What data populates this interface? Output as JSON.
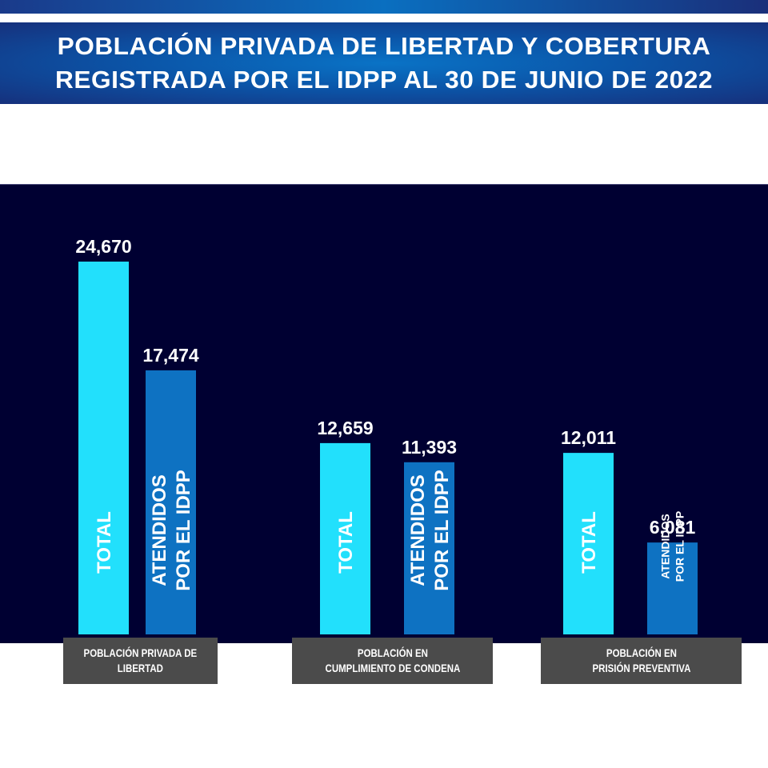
{
  "header": {
    "title_line1": "POBLACIÓN PRIVADA DE LIBERTAD Y COBERTURA",
    "title_line2": "REGISTRADA POR EL IDPP AL 30 DE JUNIO DE 2022"
  },
  "colors": {
    "total": "#22e0fc",
    "atendidos": "#0e72c2",
    "panel": "#000032",
    "category_box": "#4b4b4b",
    "label_text": "#ffffff"
  },
  "chart_data": {
    "type": "bar",
    "title": "POBLACIÓN PRIVADA DE LIBERTAD Y COBERTURA REGISTRADA POR EL IDPP AL 30 DE JUNIO DE 2022",
    "categories": [
      "POBLACIÓN PRIVADA DE LIBERTAD",
      "POBLACIÓN EN CUMPLIMIENTO DE CONDENA",
      "POBLACIÓN EN PRISIÓN PREVENTIVA"
    ],
    "category_lines": [
      [
        "POBLACIÓN PRIVADA DE",
        "LIBERTAD"
      ],
      [
        "POBLACIÓN EN",
        "CUMPLIMIENTO DE CONDENA"
      ],
      [
        "POBLACIÓN EN",
        "PRISIÓN PREVENTIVA"
      ]
    ],
    "series": [
      {
        "name": "TOTAL",
        "bar_label": [
          "TOTAL"
        ],
        "values": [
          24670,
          12659,
          12011
        ],
        "display": [
          "24,670",
          "12,659",
          "12,011"
        ]
      },
      {
        "name": "ATENDIDOS POR EL IDPP",
        "bar_label": [
          "ATENDIDOS",
          "POR EL IDPP"
        ],
        "values": [
          17474,
          11393,
          6081
        ],
        "display": [
          "17,474",
          "11,393",
          "6,081"
        ]
      }
    ],
    "xlabel": "",
    "ylabel": "",
    "ylim": [
      0,
      26000
    ],
    "grid": false,
    "legend": "none"
  }
}
